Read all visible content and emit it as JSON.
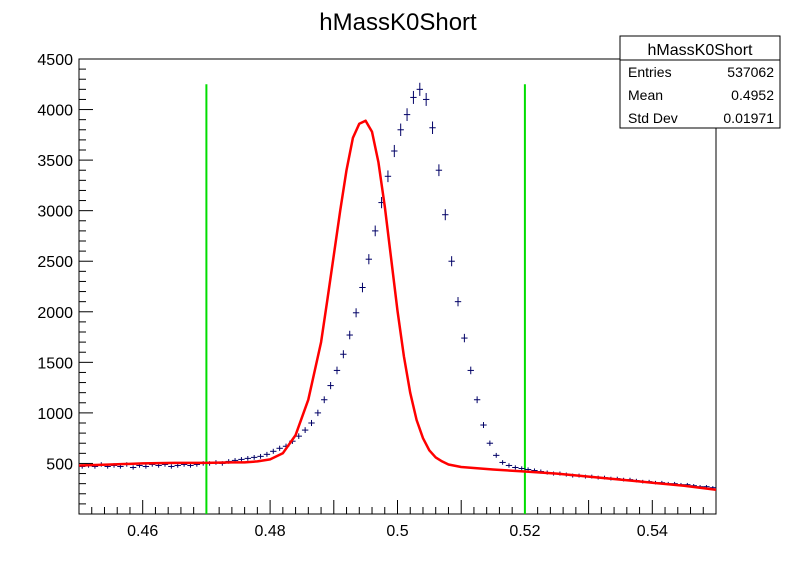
{
  "chart_data": {
    "type": "scatter",
    "title": "hMassK0Short",
    "xlabel": "",
    "ylabel": "",
    "xlim": [
      0.45,
      0.55
    ],
    "ylim": [
      0,
      4500
    ],
    "xticks": [
      "0.46",
      "0.48",
      "0.5",
      "0.52",
      "0.54"
    ],
    "yticks": [
      "500",
      "1000",
      "1500",
      "2000",
      "2500",
      "3000",
      "3500",
      "4000",
      "4500"
    ],
    "stats": {
      "title": "hMassK0Short",
      "rows": [
        {
          "label": "Entries",
          "value": "537062"
        },
        {
          "label": "Mean",
          "value": "0.4952"
        },
        {
          "label": "Std Dev",
          "value": "0.01971"
        }
      ]
    },
    "colors": {
      "data": "#000066",
      "fit": "#ff0000",
      "cut": "#00dd00"
    },
    "cut_lines": [
      0.47,
      0.52
    ],
    "cut_line_top": 4250,
    "series": [
      {
        "kind": "histogram",
        "x": [
          0.4505,
          0.4515,
          0.4525,
          0.4535,
          0.4545,
          0.4555,
          0.4565,
          0.4575,
          0.4585,
          0.4595,
          0.4605,
          0.4615,
          0.4625,
          0.4635,
          0.4645,
          0.4655,
          0.4665,
          0.4675,
          0.4685,
          0.4695,
          0.4705,
          0.4715,
          0.4725,
          0.4735,
          0.4745,
          0.4755,
          0.4765,
          0.4775,
          0.4785,
          0.4795,
          0.4805,
          0.4815,
          0.4825,
          0.4835,
          0.4845,
          0.4855,
          0.4865,
          0.4875,
          0.4885,
          0.4895,
          0.4905,
          0.4915,
          0.4925,
          0.4935,
          0.4945,
          0.4955,
          0.4965,
          0.4975,
          0.4985,
          0.4995,
          0.5005,
          0.5015,
          0.5025,
          0.5035,
          0.5045,
          0.5055,
          0.5065,
          0.5075,
          0.5085,
          0.5095,
          0.5105,
          0.5115,
          0.5125,
          0.5135,
          0.5145,
          0.5155,
          0.5165,
          0.5175,
          0.5185,
          0.5195,
          0.5205,
          0.5215,
          0.5225,
          0.5235,
          0.5245,
          0.5255,
          0.5265,
          0.5275,
          0.5285,
          0.5295,
          0.5305,
          0.5315,
          0.5325,
          0.5335,
          0.5345,
          0.5355,
          0.5365,
          0.5375,
          0.5385,
          0.5395,
          0.5405,
          0.5415,
          0.5425,
          0.5435,
          0.5445,
          0.5455,
          0.5465,
          0.5475,
          0.5485,
          0.5495
        ],
        "y": [
          470,
          480,
          470,
          490,
          470,
          480,
          470,
          490,
          460,
          480,
          470,
          490,
          480,
          490,
          470,
          480,
          490,
          480,
          490,
          500,
          500,
          510,
          500,
          520,
          530,
          540,
          550,
          560,
          570,
          590,
          620,
          650,
          670,
          720,
          770,
          830,
          900,
          1000,
          1130,
          1270,
          1420,
          1580,
          1770,
          1990,
          2240,
          2520,
          2800,
          3080,
          3340,
          3590,
          3800,
          3950,
          4120,
          4200,
          4100,
          3820,
          3400,
          2960,
          2500,
          2100,
          1740,
          1420,
          1130,
          880,
          700,
          580,
          510,
          480,
          460,
          450,
          440,
          430,
          420,
          410,
          400,
          400,
          390,
          380,
          380,
          370,
          370,
          360,
          360,
          350,
          350,
          340,
          340,
          330,
          320,
          320,
          310,
          310,
          300,
          300,
          290,
          290,
          280,
          270,
          270,
          260
        ]
      },
      {
        "kind": "fit",
        "x": [
          0.45,
          0.455,
          0.46,
          0.465,
          0.47,
          0.474,
          0.476,
          0.478,
          0.48,
          0.482,
          0.484,
          0.486,
          0.488,
          0.489,
          0.49,
          0.491,
          0.492,
          0.493,
          0.494,
          0.495,
          0.496,
          0.497,
          0.498,
          0.499,
          0.5,
          0.501,
          0.502,
          0.503,
          0.504,
          0.505,
          0.506,
          0.507,
          0.508,
          0.51,
          0.512,
          0.515,
          0.52,
          0.525,
          0.53,
          0.535,
          0.54,
          0.545,
          0.55
        ],
        "y": [
          480,
          490,
          500,
          505,
          505,
          510,
          510,
          520,
          540,
          600,
          780,
          1130,
          1700,
          2120,
          2560,
          3000,
          3400,
          3720,
          3860,
          3890,
          3780,
          3480,
          3040,
          2530,
          2010,
          1560,
          1200,
          930,
          750,
          630,
          560,
          520,
          490,
          465,
          455,
          440,
          420,
          400,
          370,
          340,
          310,
          280,
          240
        ]
      }
    ]
  }
}
